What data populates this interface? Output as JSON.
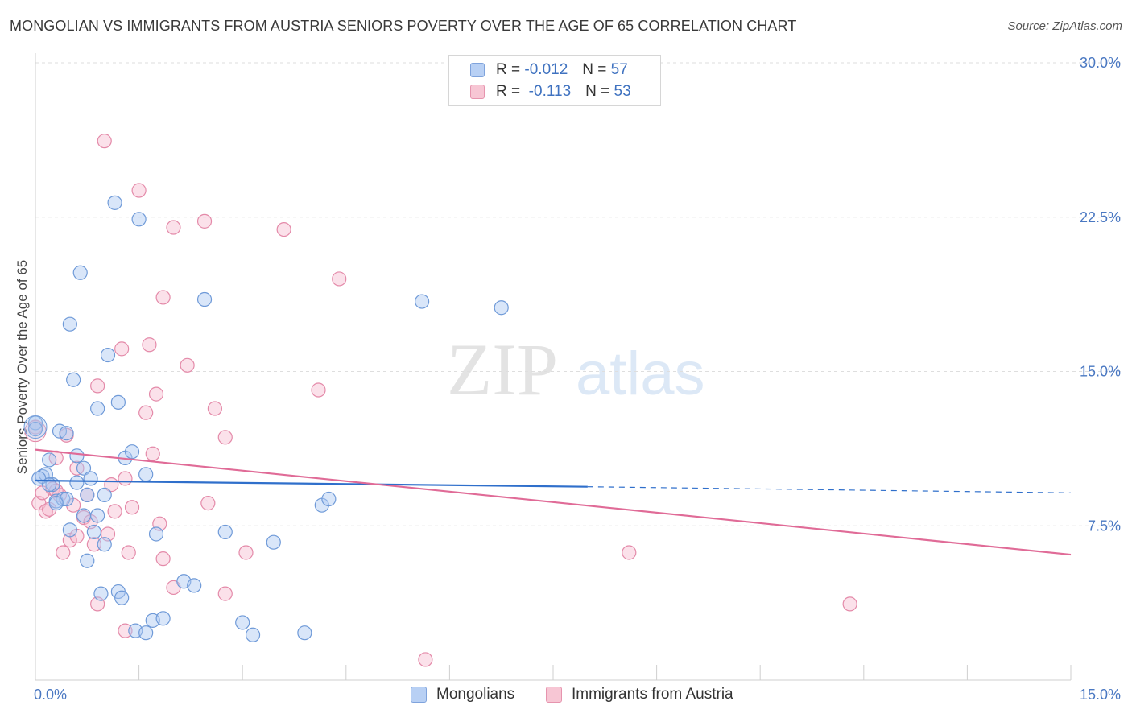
{
  "title": "MONGOLIAN VS IMMIGRANTS FROM AUSTRIA SENIORS POVERTY OVER THE AGE OF 65 CORRELATION CHART",
  "source": "Source: ZipAtlas.com",
  "watermark": {
    "zip": "ZIP",
    "atlas": "atlas"
  },
  "legend": {
    "rows": [
      {
        "r_label": "R =",
        "r_value": "-0.012",
        "n_label": "N =",
        "n_value": "57",
        "color": "#b8d0f4"
      },
      {
        "r_label": "R =",
        "r_value": "-0.113",
        "n_label": "N =",
        "n_value": "53",
        "color": "#f7c6d4"
      }
    ]
  },
  "colors": {
    "blue_fill": "#aac8f2",
    "blue_stroke": "#6f9ad8",
    "blue_line": "#2f6fcb",
    "pink_fill": "#f6bcd0",
    "pink_stroke": "#e48aa9",
    "pink_line": "#e06b97"
  },
  "chart_data": {
    "type": "scatter",
    "title": "MONGOLIAN VS IMMIGRANTS FROM AUSTRIA SENIORS POVERTY OVER THE AGE OF 65 CORRELATION CHART",
    "xlabel": "",
    "ylabel": "Seniors Poverty Over the Age of 65",
    "xlim": [
      0,
      15
    ],
    "ylim": [
      0,
      30
    ],
    "x_ticks": [
      "0.0%",
      "15.0%"
    ],
    "y_ticks": [
      "7.5%",
      "15.0%",
      "22.5%",
      "30.0%"
    ],
    "y_tick_values": [
      7.5,
      15.0,
      22.5,
      30.0
    ],
    "grid": "horizontal dashed",
    "legend_position": "top-center",
    "series": [
      {
        "name": "Mongolians",
        "trend": {
          "x": [
            0,
            8.0
          ],
          "y": [
            9.7,
            9.4
          ],
          "dashed_to": [
            15.0,
            9.1
          ]
        },
        "points": [
          [
            0.0,
            12.5
          ],
          [
            0.0,
            12.2
          ],
          [
            0.1,
            9.9
          ],
          [
            0.15,
            10.0
          ],
          [
            0.2,
            10.7
          ],
          [
            0.25,
            9.5
          ],
          [
            0.3,
            8.7
          ],
          [
            0.35,
            12.1
          ],
          [
            0.4,
            8.8
          ],
          [
            0.45,
            8.8
          ],
          [
            0.45,
            12.0
          ],
          [
            0.5,
            7.3
          ],
          [
            0.5,
            17.3
          ],
          [
            0.55,
            14.6
          ],
          [
            0.6,
            9.6
          ],
          [
            0.6,
            10.9
          ],
          [
            0.65,
            19.8
          ],
          [
            0.7,
            8.0
          ],
          [
            0.7,
            10.3
          ],
          [
            0.75,
            9.0
          ],
          [
            0.75,
            5.8
          ],
          [
            0.8,
            9.8
          ],
          [
            0.85,
            7.2
          ],
          [
            0.9,
            13.2
          ],
          [
            0.9,
            8.0
          ],
          [
            0.95,
            4.2
          ],
          [
            1.0,
            6.6
          ],
          [
            1.05,
            15.8
          ],
          [
            1.15,
            23.2
          ],
          [
            1.2,
            4.3
          ],
          [
            1.2,
            13.5
          ],
          [
            1.25,
            4.0
          ],
          [
            1.3,
            10.8
          ],
          [
            1.4,
            11.1
          ],
          [
            1.45,
            2.4
          ],
          [
            1.5,
            22.4
          ],
          [
            1.6,
            10.0
          ],
          [
            1.6,
            2.3
          ],
          [
            1.7,
            2.9
          ],
          [
            1.75,
            7.1
          ],
          [
            1.85,
            3.0
          ],
          [
            2.15,
            4.8
          ],
          [
            2.3,
            4.6
          ],
          [
            2.45,
            18.5
          ],
          [
            2.75,
            7.2
          ],
          [
            3.0,
            2.8
          ],
          [
            3.15,
            2.2
          ],
          [
            3.45,
            6.7
          ],
          [
            3.9,
            2.3
          ],
          [
            4.15,
            8.5
          ],
          [
            4.25,
            8.8
          ],
          [
            5.6,
            18.4
          ],
          [
            6.75,
            18.1
          ],
          [
            0.05,
            9.8
          ],
          [
            0.2,
            9.5
          ],
          [
            0.3,
            8.6
          ],
          [
            1.0,
            9.0
          ]
        ]
      },
      {
        "name": "Immigrants from Austria",
        "trend": {
          "x": [
            0,
            15.0
          ],
          "y": [
            11.2,
            6.1
          ]
        },
        "points": [
          [
            0.0,
            12.3
          ],
          [
            0.05,
            8.6
          ],
          [
            0.1,
            9.1
          ],
          [
            0.15,
            8.2
          ],
          [
            0.2,
            8.3
          ],
          [
            0.25,
            9.3
          ],
          [
            0.3,
            10.8
          ],
          [
            0.35,
            9.0
          ],
          [
            0.4,
            6.2
          ],
          [
            0.45,
            11.9
          ],
          [
            0.5,
            6.8
          ],
          [
            0.55,
            8.5
          ],
          [
            0.6,
            10.3
          ],
          [
            0.7,
            7.9
          ],
          [
            0.75,
            9.0
          ],
          [
            0.8,
            7.7
          ],
          [
            0.85,
            6.6
          ],
          [
            0.9,
            14.3
          ],
          [
            0.9,
            3.7
          ],
          [
            1.0,
            26.2
          ],
          [
            1.05,
            7.1
          ],
          [
            1.1,
            9.5
          ],
          [
            1.15,
            8.2
          ],
          [
            1.25,
            16.1
          ],
          [
            1.3,
            9.8
          ],
          [
            1.3,
            2.4
          ],
          [
            1.35,
            6.2
          ],
          [
            1.4,
            8.4
          ],
          [
            1.5,
            23.8
          ],
          [
            1.6,
            13.0
          ],
          [
            1.65,
            16.3
          ],
          [
            1.7,
            11.0
          ],
          [
            1.75,
            13.9
          ],
          [
            1.8,
            7.6
          ],
          [
            1.85,
            18.6
          ],
          [
            1.85,
            5.9
          ],
          [
            2.0,
            22.0
          ],
          [
            2.0,
            4.5
          ],
          [
            2.2,
            15.3
          ],
          [
            2.45,
            22.3
          ],
          [
            2.5,
            8.6
          ],
          [
            2.6,
            13.2
          ],
          [
            2.75,
            11.8
          ],
          [
            2.75,
            4.2
          ],
          [
            3.05,
            6.2
          ],
          [
            3.6,
            21.9
          ],
          [
            4.1,
            14.1
          ],
          [
            4.4,
            19.5
          ],
          [
            5.65,
            1.0
          ],
          [
            8.6,
            6.2
          ],
          [
            11.8,
            3.7
          ],
          [
            0.3,
            9.2
          ],
          [
            0.6,
            7.0
          ]
        ]
      }
    ]
  }
}
